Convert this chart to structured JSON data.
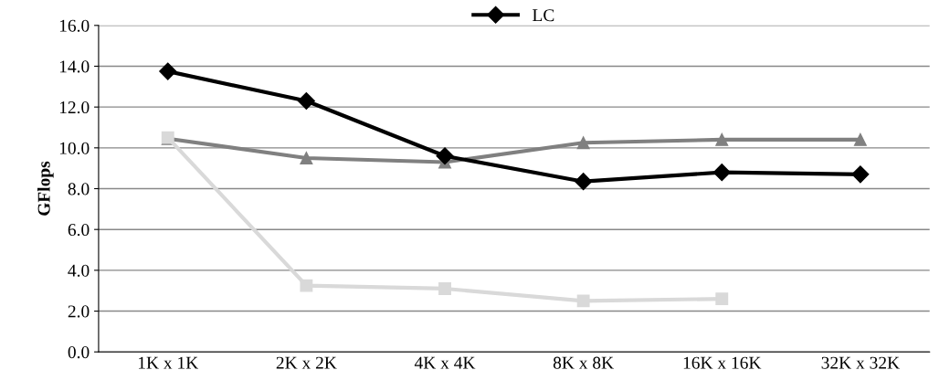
{
  "chart_data": {
    "type": "line",
    "ylabel": "GFlops",
    "categories": [
      "1K x 1K",
      "2K x 2K",
      "4K x 4K",
      "8K x 8K",
      "16K x 16K",
      "32K x 32K"
    ],
    "series": [
      {
        "name": "LC",
        "color": "#000000",
        "marker": "diamond",
        "values": [
          13.75,
          12.3,
          9.6,
          8.35,
          8.8,
          8.7
        ]
      },
      {
        "color": "#d9d9d9",
        "marker": "square",
        "values": [
          10.5,
          3.25,
          3.1,
          2.5,
          2.6,
          null
        ]
      },
      {
        "color": "#808080",
        "marker": "triangle",
        "values": [
          10.45,
          9.5,
          9.3,
          10.25,
          10.4,
          10.4
        ]
      }
    ],
    "ylim": [
      0,
      16
    ],
    "yticks": [
      {
        "value": 0,
        "label": "0.0"
      },
      {
        "value": 2,
        "label": "2.0"
      },
      {
        "value": 4,
        "label": "4.0"
      },
      {
        "value": 6,
        "label": "6.0"
      },
      {
        "value": 8,
        "label": "8.0"
      },
      {
        "value": 10,
        "label": "10.0"
      },
      {
        "value": 12,
        "label": "12.0"
      },
      {
        "value": 14,
        "label": "14.0"
      },
      {
        "value": 16,
        "label": "16.0"
      }
    ],
    "grid": "y",
    "legend": "top",
    "line_style": "solid"
  }
}
